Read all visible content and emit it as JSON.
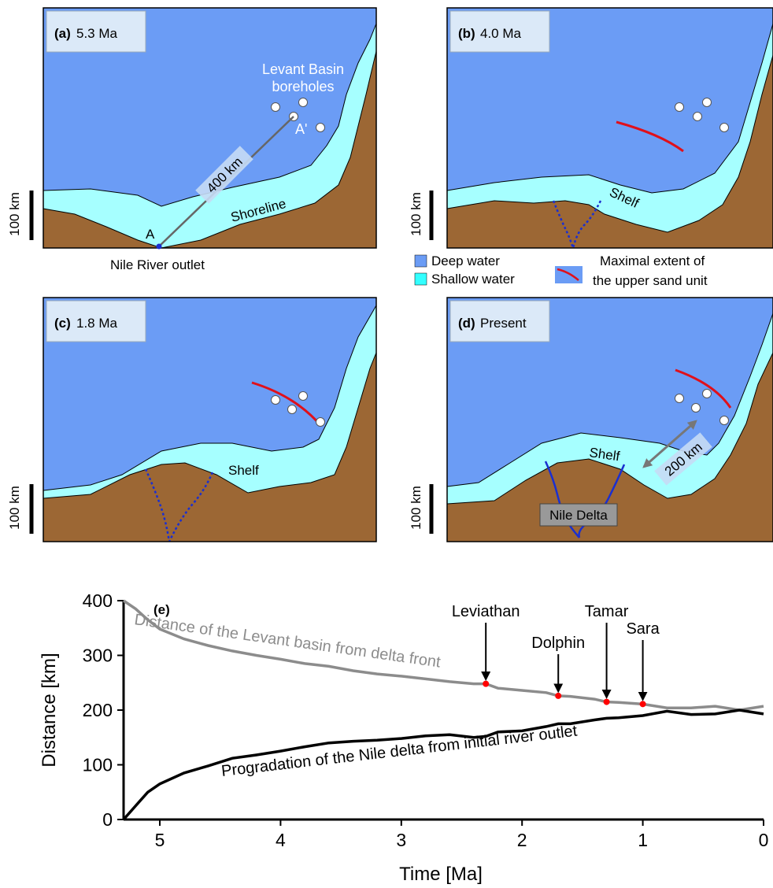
{
  "panels": [
    {
      "label": "(a)",
      "age": "5.3 Ma",
      "texts": {
        "boreholes": [
          "Levant Basin",
          "boreholes"
        ],
        "a_prime": "A'",
        "distance": "400 km",
        "shoreline": "Shoreline",
        "a": "A",
        "outlet": "Nile River outlet"
      }
    },
    {
      "label": "(b)",
      "age": "4.0 Ma",
      "texts": {
        "shelf": "Shelf"
      }
    },
    {
      "label": "(c)",
      "age": "1.8 Ma",
      "texts": {
        "shelf": "Shelf"
      }
    },
    {
      "label": "(d)",
      "age": "Present",
      "texts": {
        "shelf": "Shelf",
        "distance": "200 km",
        "delta": "Nile Delta"
      }
    }
  ],
  "scale_label": "100 km",
  "legend": {
    "deep": "Deep water",
    "shallow": "Shallow water",
    "sand": [
      "Maximal extent of",
      "the upper sand unit"
    ]
  },
  "chart_data": {
    "type": "line",
    "panel_label": "(e)",
    "x_label": "Time [Ma]",
    "y_label": "Distance [km]",
    "xlim": [
      5.3,
      0
    ],
    "xticks": [
      5,
      4,
      3,
      2,
      1,
      0
    ],
    "ylim": [
      0,
      400
    ],
    "yticks": [
      0,
      100,
      200,
      300,
      400
    ],
    "x": [
      5.3,
      5.2,
      5.1,
      5.0,
      4.8,
      4.6,
      4.4,
      4.2,
      4.0,
      3.8,
      3.6,
      3.4,
      3.2,
      3.0,
      2.8,
      2.6,
      2.4,
      2.3,
      2.2,
      2.0,
      1.8,
      1.7,
      1.6,
      1.4,
      1.3,
      1.2,
      1.0,
      0.8,
      0.6,
      0.4,
      0.2,
      0
    ],
    "series": [
      {
        "name": "Distance of the Levant basin from delta front",
        "color": "#8c8c8c",
        "values": [
          400,
          385,
          365,
          348,
          330,
          318,
          308,
          300,
          293,
          285,
          280,
          272,
          266,
          262,
          257,
          252,
          248,
          248,
          240,
          236,
          232,
          226,
          225,
          220,
          215,
          214,
          211,
          204,
          204,
          207,
          200,
          207
        ]
      },
      {
        "name": "Progradation of the Nile delta from initial river outlet",
        "color": "#000000",
        "values": [
          0,
          25,
          50,
          65,
          85,
          98,
          112,
          118,
          125,
          133,
          140,
          143,
          145,
          148,
          153,
          155,
          150,
          152,
          160,
          162,
          170,
          175,
          175,
          182,
          185,
          186,
          190,
          198,
          192,
          193,
          200,
          193
        ]
      }
    ],
    "annotations": [
      {
        "label": "Leviathan",
        "x": 2.3,
        "y": 248
      },
      {
        "label": "Dolphin",
        "x": 1.7,
        "y": 226
      },
      {
        "label": "Tamar",
        "x": 1.3,
        "y": 215
      },
      {
        "label": "Sara",
        "x": 1.0,
        "y": 211
      }
    ],
    "marker_color": "#ff0000"
  }
}
